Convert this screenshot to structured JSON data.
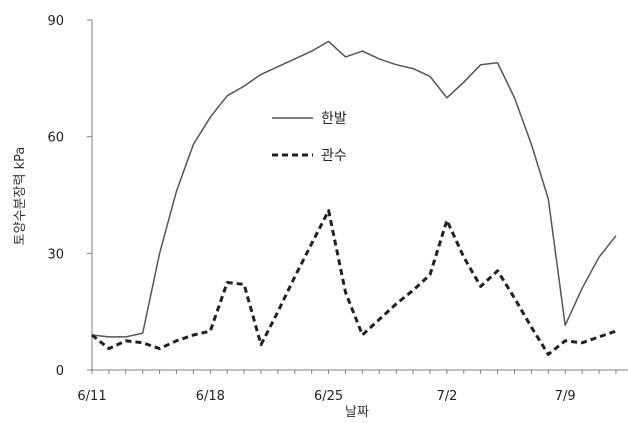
{
  "chart_data": {
    "type": "line",
    "xlabel": "날짜",
    "ylabel": "토양수분장력 kPa",
    "ylim": [
      0,
      90
    ],
    "yticks": [
      0,
      30,
      60,
      90
    ],
    "xticks": [
      "6/11",
      "6/18",
      "6/25",
      "7/2",
      "7/9"
    ],
    "xlim": [
      "6/11",
      "7/12"
    ],
    "grid": false,
    "legend": "center",
    "series": [
      {
        "name": "한발",
        "style": "solid",
        "color": "#555555",
        "points": [
          [
            "6/11",
            9
          ],
          [
            "6/12",
            8.5
          ],
          [
            "6/13",
            8.5
          ],
          [
            "6/14",
            9.5
          ],
          [
            "6/15",
            30
          ],
          [
            "6/16",
            46
          ],
          [
            "6/17",
            58
          ],
          [
            "6/18",
            65
          ],
          [
            "6/19",
            70.5
          ],
          [
            "6/20",
            73
          ],
          [
            "6/21",
            76
          ],
          [
            "6/22",
            78
          ],
          [
            "6/23",
            80
          ],
          [
            "6/24",
            82
          ],
          [
            "6/25",
            84.5
          ],
          [
            "6/26",
            80.5
          ],
          [
            "6/27",
            82
          ],
          [
            "6/28",
            80
          ],
          [
            "6/29",
            78.5
          ],
          [
            "6/30",
            77.5
          ],
          [
            "7/1",
            75.5
          ],
          [
            "7/2",
            70
          ],
          [
            "7/3",
            74
          ],
          [
            "7/4",
            78.5
          ],
          [
            "7/5",
            79
          ],
          [
            "7/6",
            70
          ],
          [
            "7/7",
            58
          ],
          [
            "7/8",
            44
          ],
          [
            "7/9",
            11.5
          ],
          [
            "7/10",
            21
          ],
          [
            "7/11",
            29
          ],
          [
            "7/12",
            34.5
          ]
        ]
      },
      {
        "name": "관수",
        "style": "dashed",
        "color": "#222222",
        "points": [
          [
            "6/11",
            9
          ],
          [
            "6/12",
            5.5
          ],
          [
            "6/13",
            7.5
          ],
          [
            "6/14",
            7
          ],
          [
            "6/15",
            5.5
          ],
          [
            "6/16",
            7.5
          ],
          [
            "6/17",
            9
          ],
          [
            "6/18",
            10
          ],
          [
            "6/19",
            22.5
          ],
          [
            "6/20",
            22
          ],
          [
            "6/21",
            6.5
          ],
          [
            "6/22",
            15
          ],
          [
            "6/23",
            24
          ],
          [
            "6/24",
            32.5
          ],
          [
            "6/25",
            41
          ],
          [
            "6/26",
            20
          ],
          [
            "6/27",
            9
          ],
          [
            "6/28",
            13
          ],
          [
            "6/29",
            17
          ],
          [
            "6/30",
            20.5
          ],
          [
            "7/1",
            24.5
          ],
          [
            "7/2",
            38.5
          ],
          [
            "7/3",
            29
          ],
          [
            "7/4",
            21.5
          ],
          [
            "7/5",
            25.5
          ],
          [
            "7/6",
            18.5
          ],
          [
            "7/7",
            11
          ],
          [
            "7/8",
            4
          ],
          [
            "7/9",
            7.5
          ],
          [
            "7/10",
            7
          ],
          [
            "7/11",
            8.5
          ],
          [
            "7/12",
            10
          ]
        ]
      }
    ]
  }
}
